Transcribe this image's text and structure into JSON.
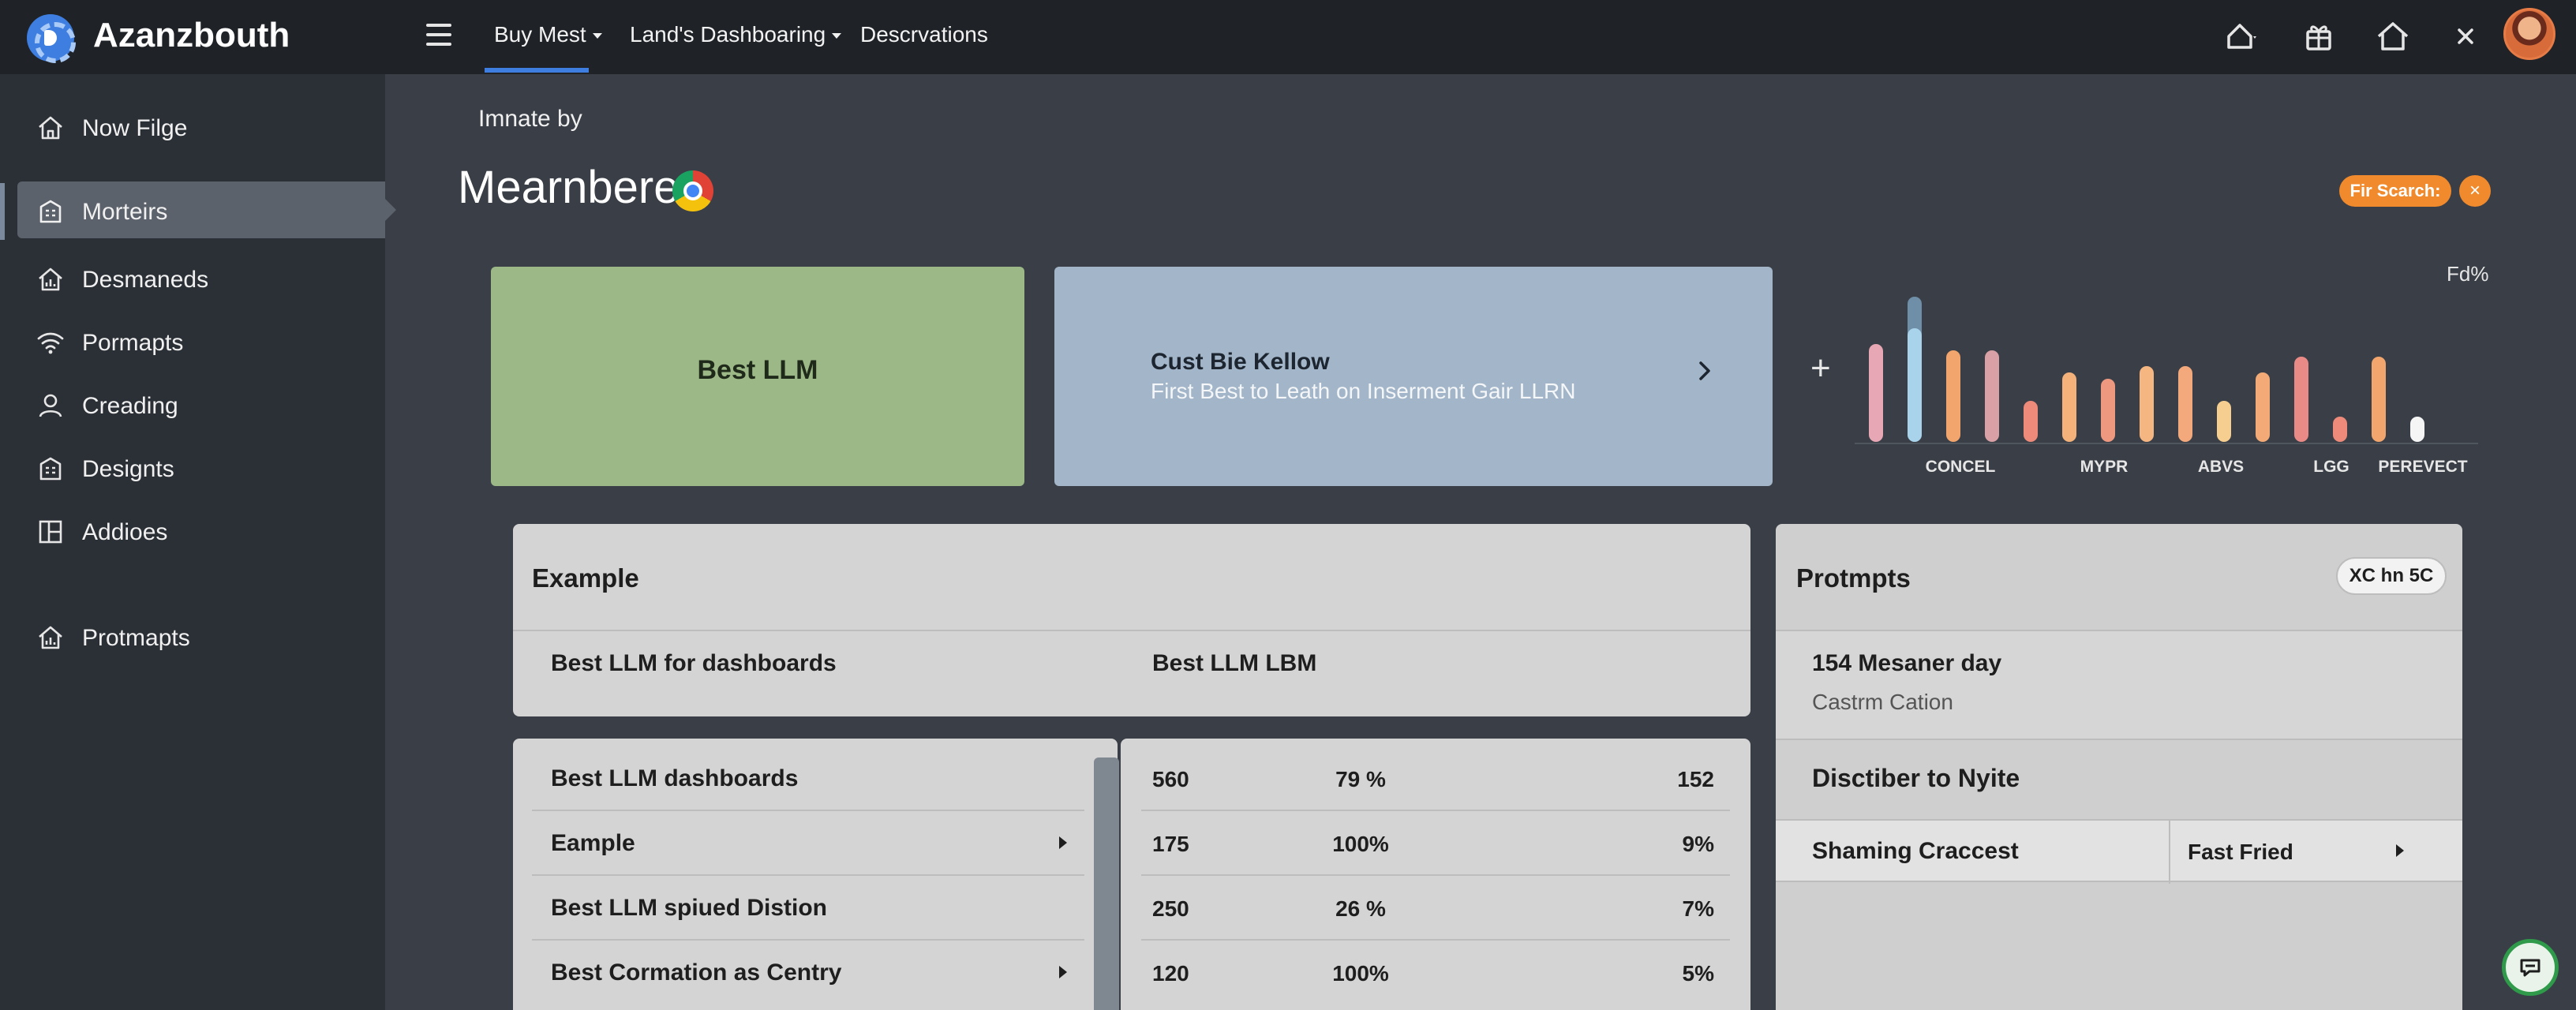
{
  "app": {
    "brand": "Azanzbouth"
  },
  "topnav": {
    "tabs": [
      {
        "label": "Buy Mest",
        "dropdown": true
      },
      {
        "label": "Land's Dashboaring",
        "dropdown": true
      },
      {
        "label": "Descrvations",
        "dropdown": false
      }
    ],
    "icons": [
      "home-dropdown-icon",
      "gift-icon",
      "home-icon",
      "close-icon",
      "avatar"
    ]
  },
  "sidebar": {
    "items": [
      {
        "label": "Now Filge",
        "icon": "home-icon"
      },
      {
        "label": "Morteirs",
        "icon": "building-icon",
        "active": true
      },
      {
        "label": "Desmaneds",
        "icon": "house-chart-icon"
      },
      {
        "label": "Pormapts",
        "icon": "wifi-icon"
      },
      {
        "label": "Creading",
        "icon": "user-icon"
      },
      {
        "label": "Designts",
        "icon": "building-icon"
      },
      {
        "label": "Addioes",
        "icon": "layout-icon"
      },
      {
        "label": "Protmapts",
        "icon": "house-chart-icon"
      }
    ]
  },
  "header": {
    "subtitle": "Imnate by",
    "title": "Mearnbere",
    "search_label": "Fir Scarch:",
    "search_close": "×"
  },
  "cards": {
    "green": {
      "label": "Best LLM"
    },
    "blue": {
      "title": "Cust Bie Kellow",
      "subtitle": "First Best to Leath on Inserment Gair LLRN"
    }
  },
  "chart_data": {
    "type": "bar",
    "corner_label": "Fd%",
    "tick_labels": [
      "CONCEL",
      "MYPR",
      "ABVS",
      "LGG",
      "PEREVECT"
    ],
    "values": [
      0.62,
      0.72,
      0.58,
      0.58,
      0.26,
      0.44,
      0.4,
      0.48,
      0.48,
      0.26,
      0.44,
      0.54,
      0.16,
      0.54,
      0.16
    ],
    "colors": [
      "#e8a7b4",
      "#a9d3ea",
      "#f2a56c",
      "#d9a0a6",
      "#ee8a7a",
      "#f4b27a",
      "#ef9880",
      "#f6b682",
      "#f3a97c",
      "#f6cf90",
      "#f3aa76",
      "#ea8a86",
      "#ee8a7a",
      "#f2a56c",
      "#f5f5f5"
    ],
    "highlight_index": 1,
    "grid": false
  },
  "example_panel": {
    "title": "Example",
    "col1": "Best LLM for dashboards",
    "col2": "Best LLM LBM"
  },
  "list_panel": {
    "rows": [
      {
        "label": "Best LLM dashboards",
        "arrow": false
      },
      {
        "label": "Eample",
        "arrow": true
      },
      {
        "label": "Best LLM spiued Distion",
        "arrow": false
      },
      {
        "label": "Best Cormation as Centry",
        "arrow": true
      }
    ]
  },
  "table_panel": {
    "rows": [
      {
        "a": "560",
        "b": "79 %",
        "c": "152"
      },
      {
        "a": "175",
        "b": "100%",
        "c": "9%"
      },
      {
        "a": "250",
        "b": "26 %",
        "c": "7%"
      },
      {
        "a": "120",
        "b": "100%",
        "c": "5%"
      }
    ]
  },
  "prompts_panel": {
    "title": "Protmpts",
    "pill": "XC hn 5C",
    "item_title": "154 Mesaner day",
    "item_sub": "Castrm Cation",
    "section": "Disctiber to Nyite",
    "row_label": "Shaming Craccest",
    "row_value": "Fast Fried"
  }
}
